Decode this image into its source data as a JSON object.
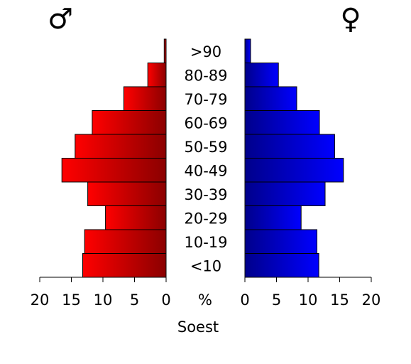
{
  "chart_data": {
    "type": "bar",
    "orientation": "horizontal",
    "layout": "population-pyramid",
    "title": "",
    "xlabel": "Soest",
    "center_unit_label": "%",
    "xlim": [
      0,
      20
    ],
    "x_ticks": [
      "20",
      "15",
      "10",
      "5",
      "0",
      "0",
      "5",
      "10",
      "15",
      "20"
    ],
    "categories": [
      "<10",
      "10-19",
      "20-29",
      "30-39",
      "40-49",
      "50-59",
      "60-69",
      "70-79",
      "80-89",
      ">90"
    ],
    "series": [
      {
        "name": "♂",
        "side": "left",
        "values": [
          13.2,
          12.9,
          9.6,
          12.4,
          16.5,
          14.4,
          11.7,
          6.7,
          2.9,
          0.3
        ]
      },
      {
        "name": "♀",
        "side": "right",
        "values": [
          11.7,
          11.4,
          8.9,
          12.7,
          15.6,
          14.2,
          11.8,
          8.2,
          5.3,
          0.9
        ]
      }
    ],
    "grid": false,
    "legend": "none",
    "colors": {
      "male_light": "#ff0000",
      "male_dark": "#8b0000",
      "female_light": "#0000ff",
      "female_dark": "#00008b",
      "bar_stroke": "#000000"
    }
  }
}
